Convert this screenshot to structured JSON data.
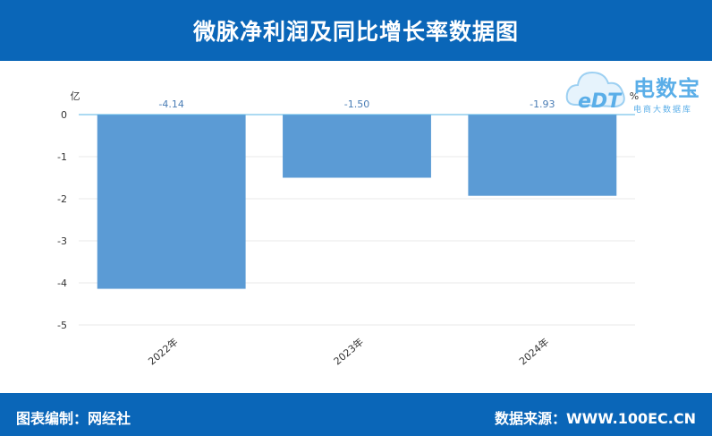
{
  "header": {
    "title": "微脉净利润及同比增长率数据图"
  },
  "footer": {
    "left": "图表编制：网经社",
    "right": "数据来源：WWW.100EC.CN"
  },
  "logo": {
    "name": "电数宝",
    "subtitle": "电商大数据库",
    "mark": "eDT"
  },
  "chart_data": {
    "type": "bar",
    "categories": [
      "2022年",
      "2023年",
      "2024年"
    ],
    "series": [
      {
        "values": [
          -4.14,
          -1.5,
          -1.93
        ]
      }
    ],
    "data_labels": [
      "-4.14",
      "-1.50",
      "-1.93"
    ],
    "y_unit_label": "亿",
    "y2_unit_label": "%",
    "ylim": [
      -5,
      0
    ],
    "yticks": [
      "0",
      "-1",
      "-2",
      "-3",
      "-4",
      "-5"
    ],
    "grid": true,
    "bar_color": "#5b9bd5",
    "zero_line_color": "#5ab4e6",
    "label_color": "#4a7db5"
  }
}
